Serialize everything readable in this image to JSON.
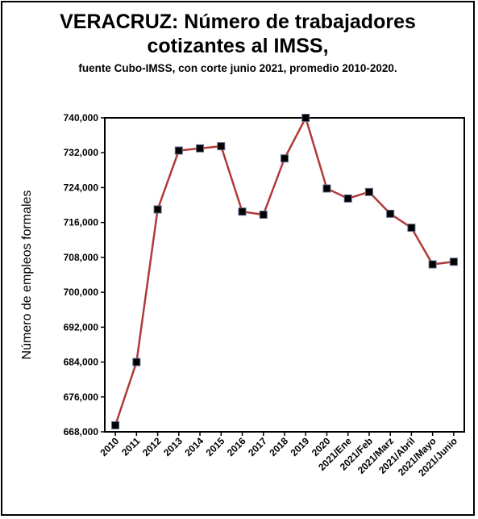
{
  "chart_data": {
    "type": "line",
    "title": "VERACRUZ: Número de trabajadores cotizantes al IMSS,",
    "subtitle": "fuente Cubo-IMSS, con corte junio 2021, promedio 2010-2020.",
    "xlabel": "",
    "ylabel": "Número de empleos formales",
    "ylim": [
      668000,
      740000
    ],
    "yticks": [
      "668,000",
      "676,000",
      "684,000",
      "692,000",
      "700,000",
      "708,000",
      "716,000",
      "724,000",
      "732,000",
      "740,000"
    ],
    "categories": [
      "2010",
      "2011",
      "2012",
      "2013",
      "2014",
      "2015",
      "2016",
      "2017",
      "2018",
      "2019",
      "2020",
      "2021/Ene",
      "2021/Feb",
      "2021/Marz",
      "2021/Abril",
      "2021/Mayo",
      "2021/Junio"
    ],
    "series": [
      {
        "values": [
          669500,
          684000,
          719000,
          732500,
          733000,
          733500,
          718500,
          717800,
          730700,
          740000,
          723800,
          721500,
          723000,
          718000,
          714800,
          706400,
          707000
        ]
      }
    ],
    "grid": false,
    "legend": "none",
    "line_color": "#B03A3A",
    "marker_color": "#000000"
  }
}
